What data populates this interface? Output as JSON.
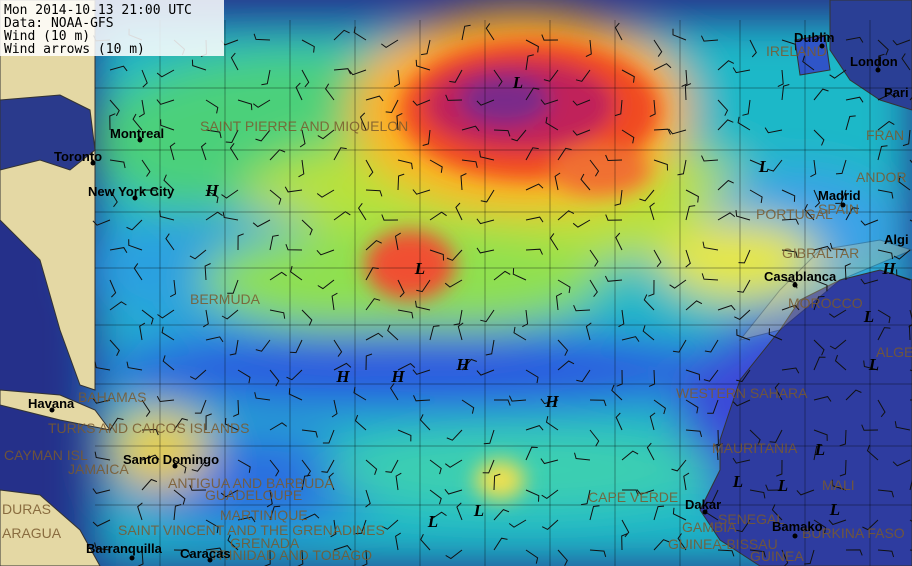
{
  "info": {
    "datetime": "Mon 2014-10-13 21:00 UTC",
    "source": "Data: NOAA-GFS",
    "layer": "Wind (10 m)",
    "arrows": "Wind arrows (10 m)"
  },
  "cities": [
    "Montreal",
    "Toronto",
    "New York City",
    "Havana",
    "Santo Domingo",
    "Caracas",
    "Barranquilla",
    "Dakar",
    "Bamako",
    "Casablanca",
    "Madrid",
    "Dublin",
    "London",
    "Pari",
    "Algi"
  ],
  "regions": [
    "SAINT PIERRE AND MIQUELON",
    "BERMUDA",
    "BAHAMAS",
    "TURKS AND CAICOS ISLANDS",
    "CAYMAN ISL",
    "JAMAICA",
    "ANTIGUA AND BARBUDA",
    "GUADELOUPE",
    "MARTINIQUE",
    "SAINT VINCENT AND THE GRENADINES",
    "GRENADA",
    "TRINIDAD AND TOBAGO",
    "DURAS",
    "ARAGUA",
    "WESTERN SAHARA",
    "MAURITANIA",
    "CAPE VERDE",
    "MOROCCO",
    "GIBRALTAR",
    "PORTUGAL",
    "SPAIN",
    "ANDOR",
    "FRAN",
    "IRELAND",
    "SENEGAL",
    "GAMBIA",
    "GUINEA-BISSAU",
    "GUINEA",
    "MALI",
    "BURKINA FASO",
    "ALGE"
  ],
  "pressure_centers": [
    "L",
    "L",
    "H",
    "L",
    "H",
    "L",
    "H",
    "H",
    "H",
    "L",
    "H",
    "L",
    "L",
    "L",
    "L",
    "L",
    "L"
  ]
}
